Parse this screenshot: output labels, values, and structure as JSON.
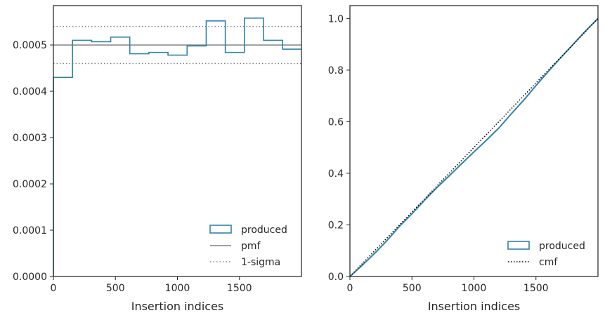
{
  "chart_data": [
    {
      "type": "line",
      "subtype": "step-histogram",
      "xlabel": "Insertion indices",
      "ylabel": "",
      "xlim": [
        0,
        2000
      ],
      "ylim": [
        0,
        0.000585
      ],
      "xticks": [
        0,
        500,
        1000,
        1500
      ],
      "xtick_labels": [
        "0",
        "500",
        "1000",
        "1500"
      ],
      "yticks": [
        0,
        0.0001,
        0.0002,
        0.0003,
        0.0004,
        0.0005
      ],
      "ytick_labels": [
        "0.0000",
        "0.0001",
        "0.0002",
        "0.0003",
        "0.0004",
        "0.0005"
      ],
      "bin_edges": [
        0,
        154,
        308,
        462,
        616,
        770,
        924,
        1078,
        1232,
        1386,
        1540,
        1694,
        1848,
        2000
      ],
      "series": [
        {
          "name": "produced",
          "color": "#3182a8",
          "values": [
            0.00043,
            0.00051,
            0.000507,
            0.000517,
            0.000481,
            0.000484,
            0.000478,
            0.000498,
            0.000552,
            0.000484,
            0.000558,
            0.00051,
            0.000491
          ]
        },
        {
          "name": "pmf",
          "color": "#808080",
          "style": "solid",
          "value": 0.0005
        },
        {
          "name": "1-sigma",
          "color": "#808080",
          "style": "dotted",
          "values": [
            0.00054,
            0.00046
          ]
        }
      ],
      "legend": {
        "placement": "lower-right",
        "entries": [
          "produced",
          "pmf",
          "1-sigma"
        ]
      },
      "grid": false
    },
    {
      "type": "line",
      "xlabel": "Insertion indices",
      "ylabel": "",
      "xlim": [
        0,
        2000
      ],
      "ylim": [
        0,
        1.05
      ],
      "xticks": [
        0,
        500,
        1000,
        1500
      ],
      "xtick_labels": [
        "0",
        "500",
        "1000",
        "1500"
      ],
      "yticks": [
        0,
        0.2,
        0.4,
        0.6,
        0.8,
        1.0
      ],
      "ytick_labels": [
        "0.0",
        "0.2",
        "0.4",
        "0.6",
        "0.8",
        "1.0"
      ],
      "series": [
        {
          "name": "produced",
          "color": "#3182a8",
          "x": [
            0,
            100,
            200,
            300,
            400,
            500,
            600,
            700,
            800,
            900,
            1000,
            1100,
            1200,
            1300,
            1400,
            1500,
            1600,
            1700,
            1800,
            1900,
            2000
          ],
          "y": [
            0,
            0.044,
            0.09,
            0.14,
            0.195,
            0.243,
            0.295,
            0.344,
            0.39,
            0.437,
            0.483,
            0.528,
            0.575,
            0.63,
            0.683,
            0.74,
            0.795,
            0.848,
            0.9,
            0.952,
            1.0
          ]
        },
        {
          "name": "cmf",
          "color": "#000000",
          "style": "dotted",
          "x": [
            0,
            2000
          ],
          "y": [
            0,
            1.0
          ]
        }
      ],
      "legend": {
        "placement": "lower-right",
        "entries": [
          "produced",
          "cmf"
        ]
      },
      "grid": false
    }
  ]
}
